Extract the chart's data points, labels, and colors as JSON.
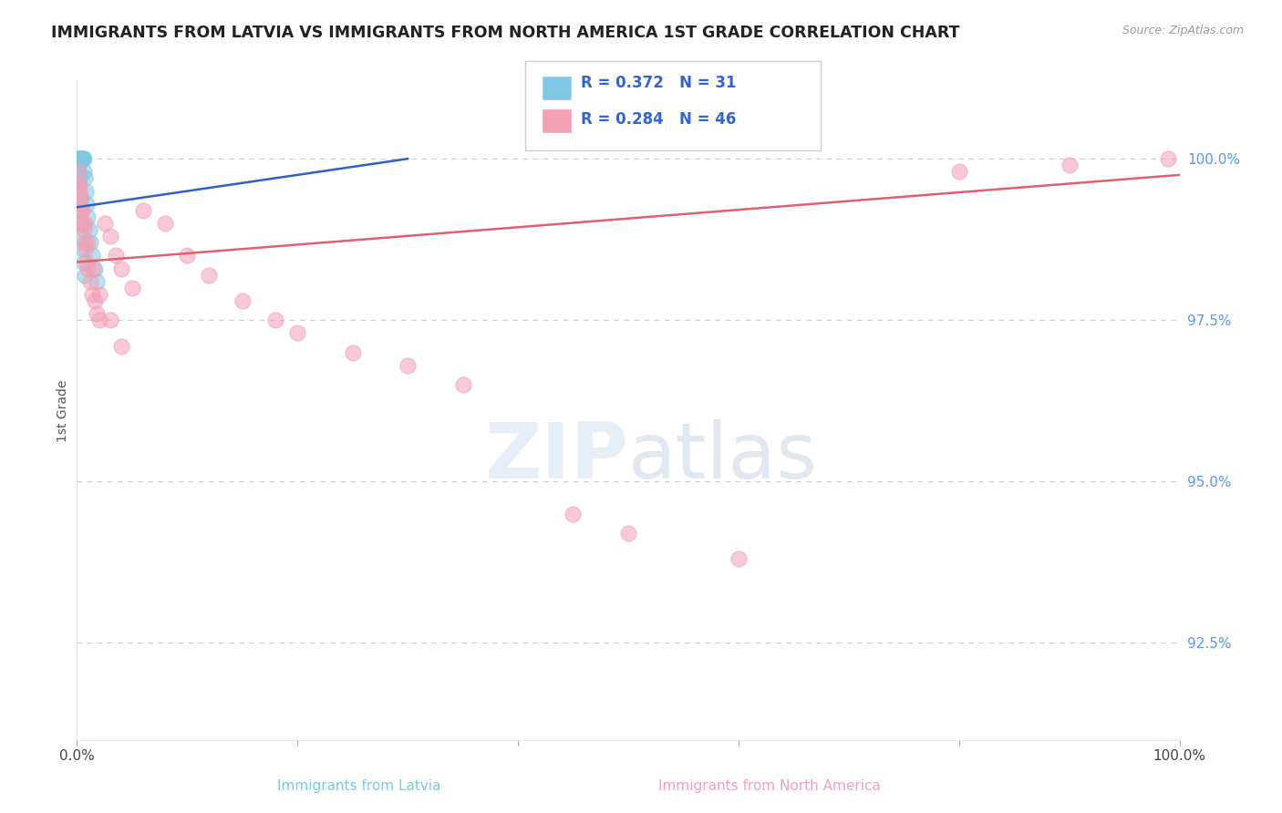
{
  "title": "IMMIGRANTS FROM LATVIA VS IMMIGRANTS FROM NORTH AMERICA 1ST GRADE CORRELATION CHART",
  "source": "Source: ZipAtlas.com",
  "ylabel": "1st Grade",
  "ylim": [
    91.0,
    101.2
  ],
  "xlim": [
    0.0,
    100.0
  ],
  "ytick_vals": [
    92.5,
    95.0,
    97.5,
    100.0
  ],
  "ytick_labels": [
    "92.5%",
    "95.0%",
    "97.5%",
    "100.0%"
  ],
  "legend_latvia_R": 0.372,
  "legend_latvia_N": 31,
  "legend_na_R": 0.284,
  "legend_na_N": 46,
  "color_latvia": "#7EC8E3",
  "color_na": "#F4A0B5",
  "color_latvia_line": "#3060C0",
  "color_na_line": "#E06070",
  "background": "#FFFFFF",
  "latvia_x": [
    0.15,
    0.2,
    0.25,
    0.3,
    0.35,
    0.4,
    0.45,
    0.5,
    0.55,
    0.6,
    0.65,
    0.7,
    0.8,
    0.9,
    1.0,
    1.1,
    1.2,
    1.4,
    1.6,
    1.8,
    0.1,
    0.12,
    0.18,
    0.22,
    0.28,
    0.32,
    0.38,
    0.42,
    0.5,
    0.6,
    0.7
  ],
  "latvia_y": [
    100.0,
    100.0,
    100.0,
    100.0,
    100.0,
    100.0,
    100.0,
    100.0,
    100.0,
    100.0,
    99.8,
    99.7,
    99.5,
    99.3,
    99.1,
    98.9,
    98.7,
    98.5,
    98.3,
    98.1,
    99.9,
    99.8,
    99.7,
    99.6,
    99.4,
    99.2,
    99.0,
    98.8,
    98.6,
    98.4,
    98.2
  ],
  "na_x": [
    0.1,
    0.2,
    0.3,
    0.4,
    0.5,
    0.6,
    0.7,
    0.8,
    0.9,
    1.0,
    1.2,
    1.4,
    1.6,
    1.8,
    2.0,
    2.5,
    3.0,
    3.5,
    4.0,
    5.0,
    6.0,
    8.0,
    10.0,
    12.0,
    15.0,
    18.0,
    20.0,
    25.0,
    30.0,
    35.0,
    0.15,
    0.25,
    0.35,
    0.5,
    0.7,
    1.0,
    1.5,
    2.0,
    3.0,
    4.0,
    45.0,
    50.0,
    60.0,
    80.0,
    90.0,
    99.0
  ],
  "na_y": [
    99.6,
    99.5,
    99.3,
    99.2,
    99.0,
    98.9,
    98.7,
    98.6,
    98.4,
    98.3,
    98.1,
    97.9,
    97.8,
    97.6,
    97.5,
    99.0,
    98.8,
    98.5,
    98.3,
    98.0,
    99.2,
    99.0,
    98.5,
    98.2,
    97.8,
    97.5,
    97.3,
    97.0,
    96.8,
    96.5,
    99.8,
    99.6,
    99.4,
    99.2,
    99.0,
    98.7,
    98.3,
    97.9,
    97.5,
    97.1,
    94.5,
    94.2,
    93.8,
    99.8,
    99.9,
    100.0
  ]
}
